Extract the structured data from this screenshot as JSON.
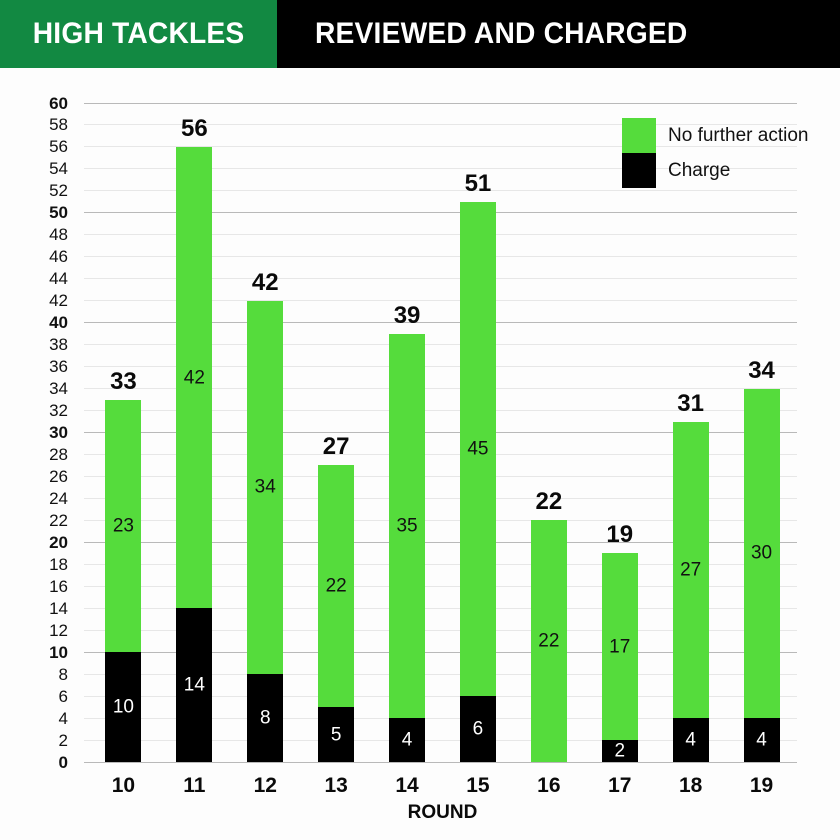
{
  "header": {
    "left_label": "HIGH TACKLES",
    "right_label": "REVIEWED AND CHARGED",
    "left_bg": "#128942",
    "right_bg": "#000000"
  },
  "legend": {
    "items": [
      {
        "label": "No further action",
        "color": "#55DC3C"
      },
      {
        "label": "Charge",
        "color": "#000000"
      }
    ]
  },
  "chart_data": {
    "type": "bar",
    "stacked": true,
    "title": "HIGH TACKLES — REVIEWED AND CHARGED",
    "xlabel": "ROUND",
    "ylabel": "",
    "categories": [
      "10",
      "11",
      "12",
      "13",
      "14",
      "15",
      "16",
      "17",
      "18",
      "19"
    ],
    "series": [
      {
        "name": "Charge",
        "color": "#000000",
        "label_color": "#ffffff",
        "values": [
          10,
          14,
          8,
          5,
          4,
          6,
          0,
          2,
          4,
          4
        ]
      },
      {
        "name": "No further action",
        "color": "#55DC3C",
        "label_color": "#111111",
        "values": [
          23,
          42,
          34,
          22,
          35,
          45,
          22,
          17,
          27,
          30
        ]
      }
    ],
    "totals": [
      33,
      56,
      42,
      27,
      39,
      51,
      22,
      19,
      31,
      34
    ],
    "ylim": [
      0,
      60
    ],
    "ytick_step": 2,
    "ytick_major_step": 10,
    "grid": true,
    "legend_position": "top-right"
  }
}
